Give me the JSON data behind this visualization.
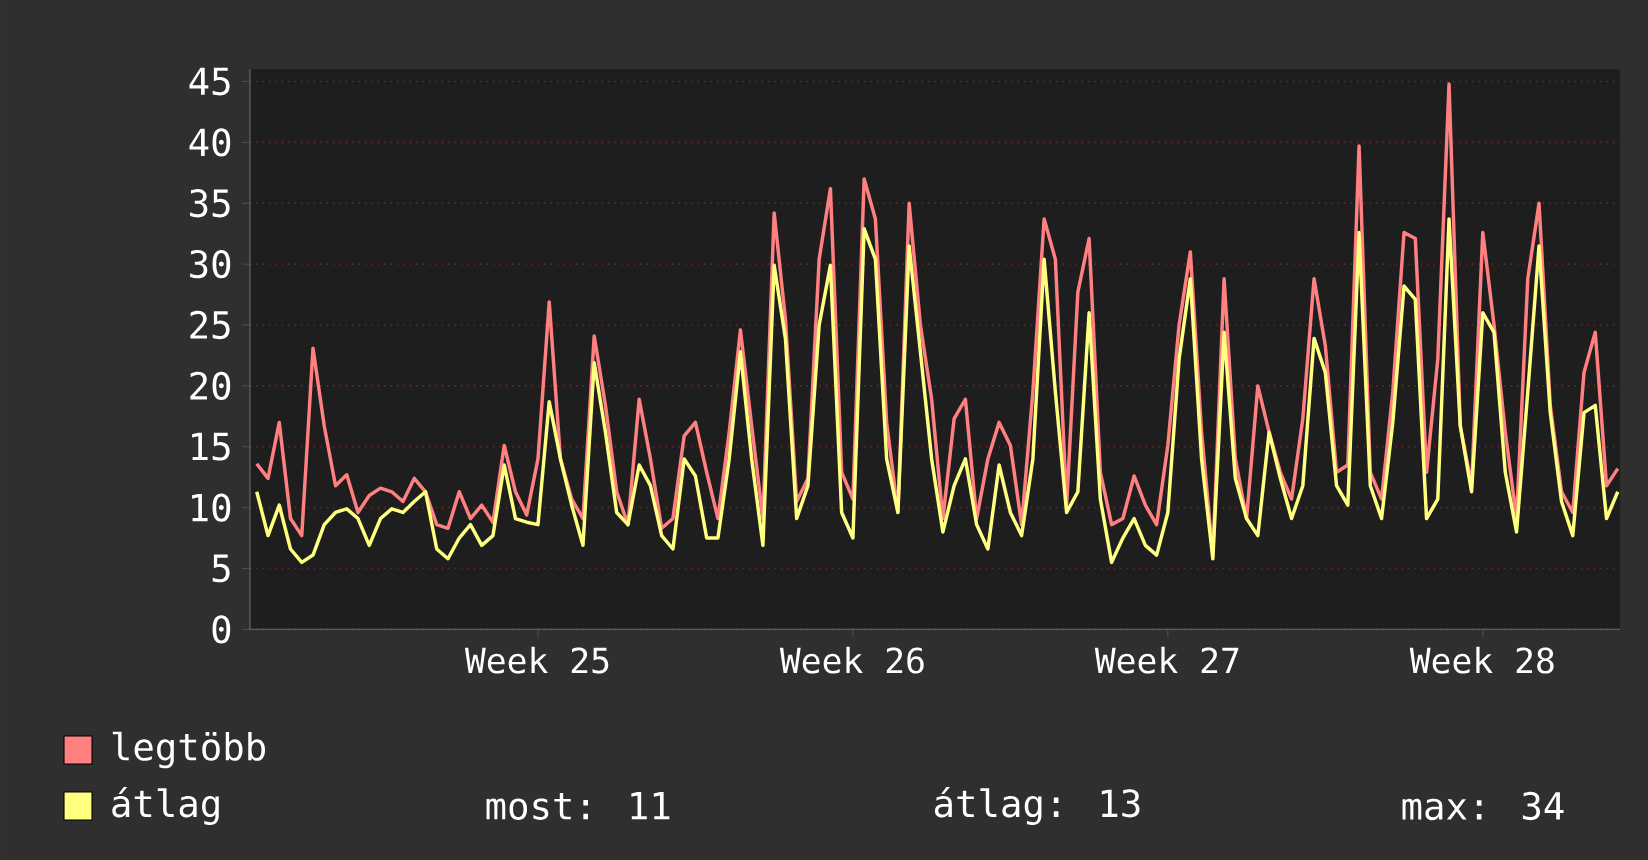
{
  "chart_data": {
    "type": "line",
    "categories": [
      null,
      null,
      null,
      null,
      null,
      null,
      null,
      null,
      null,
      null,
      null,
      null,
      null,
      null,
      null,
      null,
      null,
      null,
      null,
      null,
      null,
      null,
      null,
      null,
      null,
      "Week 25",
      null,
      null,
      null,
      null,
      null,
      null,
      null,
      null,
      null,
      null,
      null,
      null,
      null,
      null,
      null,
      null,
      null,
      null,
      null,
      null,
      null,
      null,
      null,
      null,
      null,
      null,
      null,
      "Week 26",
      null,
      null,
      null,
      null,
      null,
      null,
      null,
      null,
      null,
      null,
      null,
      null,
      null,
      null,
      null,
      null,
      null,
      null,
      null,
      null,
      null,
      null,
      null,
      null,
      null,
      null,
      null,
      "Week 27",
      null,
      null,
      null,
      null,
      null,
      null,
      null,
      null,
      null,
      null,
      null,
      null,
      null,
      null,
      null,
      null,
      null,
      null,
      null,
      null,
      null,
      null,
      null,
      null,
      null,
      null,
      null,
      "Week 28",
      null,
      null,
      null,
      null,
      null,
      null,
      null,
      null,
      null,
      null,
      null,
      null
    ],
    "ylim": [
      0,
      46
    ],
    "yticks": [
      0,
      5,
      10,
      15,
      20,
      25,
      30,
      35,
      40,
      45
    ],
    "grid": "y",
    "legend": "bottom",
    "marker": "none",
    "line_style": "solid",
    "series": [
      {
        "name": "legtöbb",
        "color": "#ff8080",
        "values": [
          13.6,
          12.4,
          17.0,
          9.1,
          7.7,
          23.1,
          16.7,
          11.8,
          12.7,
          9.6,
          11.0,
          11.6,
          11.3,
          10.5,
          12.4,
          11.3,
          8.6,
          8.3,
          11.3,
          9.1,
          10.2,
          8.8,
          15.1,
          11.3,
          9.4,
          14.0,
          26.9,
          14.0,
          10.7,
          9.1,
          24.1,
          18.4,
          11.3,
          8.6,
          18.9,
          14.0,
          8.3,
          9.1,
          15.9,
          17.0,
          12.9,
          9.1,
          16.2,
          24.6,
          16.7,
          9.1,
          34.2,
          25.5,
          10.5,
          12.4,
          30.4,
          36.2,
          12.9,
          10.7,
          37.0,
          33.7,
          17.0,
          9.6,
          35.0,
          25.0,
          18.9,
          9.1,
          17.3,
          18.9,
          9.1,
          14.0,
          17.0,
          15.1,
          8.6,
          19.5,
          33.7,
          30.4,
          10.2,
          27.7,
          32.1,
          12.9,
          8.6,
          9.1,
          12.6,
          10.2,
          8.6,
          15.1,
          25.0,
          31.0,
          16.2,
          6.1,
          28.8,
          14.0,
          9.1,
          20.0,
          16.2,
          12.9,
          10.7,
          17.3,
          28.8,
          23.3,
          12.9,
          13.5,
          39.7,
          12.9,
          10.7,
          19.5,
          32.6,
          32.1,
          12.9,
          22.2,
          44.8,
          16.7,
          11.8,
          32.6,
          25.0,
          16.2,
          9.1,
          28.8,
          35.0,
          18.4,
          11.3,
          9.6,
          21.1,
          24.4,
          11.8,
          13.2
        ]
      },
      {
        "name": "átlag",
        "color": "#ffff80",
        "values": [
          11.3,
          7.7,
          10.2,
          6.6,
          5.5,
          6.1,
          8.6,
          9.6,
          9.9,
          9.1,
          6.9,
          9.1,
          9.9,
          9.6,
          10.5,
          11.3,
          6.6,
          5.8,
          7.5,
          8.6,
          6.9,
          7.7,
          13.5,
          9.1,
          8.8,
          8.6,
          18.7,
          14.0,
          10.2,
          6.9,
          21.9,
          16.2,
          9.6,
          8.6,
          13.5,
          11.8,
          7.7,
          6.6,
          14.0,
          12.6,
          7.5,
          7.5,
          14.0,
          22.8,
          14.0,
          6.9,
          29.9,
          23.9,
          9.1,
          11.8,
          25.0,
          29.9,
          9.6,
          7.5,
          32.9,
          30.4,
          14.0,
          9.6,
          31.5,
          22.8,
          14.0,
          8.0,
          11.8,
          14.0,
          8.6,
          6.6,
          13.5,
          9.6,
          7.7,
          14.0,
          30.4,
          19.5,
          9.6,
          11.3,
          26.0,
          10.7,
          5.5,
          7.5,
          9.1,
          6.9,
          6.1,
          9.6,
          22.2,
          28.8,
          14.0,
          5.8,
          24.4,
          12.4,
          9.1,
          7.7,
          16.2,
          12.4,
          9.1,
          11.8,
          23.9,
          21.1,
          11.8,
          10.2,
          32.6,
          11.8,
          9.1,
          17.0,
          28.2,
          27.1,
          9.1,
          10.7,
          33.7,
          16.7,
          11.3,
          26.0,
          24.4,
          12.9,
          8.0,
          19.5,
          31.5,
          17.8,
          10.5,
          7.7,
          17.8,
          18.4,
          9.1,
          11.3
        ]
      }
    ],
    "annotations": [
      "most: 11",
      "átlag: 13",
      "max: 34"
    ]
  }
}
